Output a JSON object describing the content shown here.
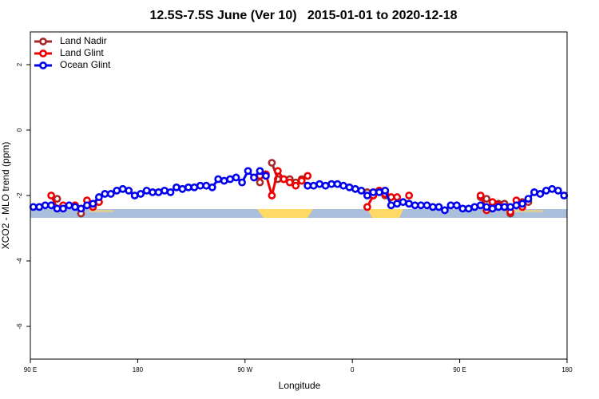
{
  "chart_data": {
    "type": "line",
    "title": "12.5S-7.5S June (Ver 10)   2015-01-01 to 2020-12-18",
    "x_label": "Longitude",
    "y_label": "XCO2 - MLO trend (ppm)",
    "xlim": [
      90,
      540
    ],
    "xticks": [
      {
        "value": 90,
        "label": "90 E"
      },
      180,
      {
        "value": 270,
        "label": "90 W"
      },
      {
        "value": 360,
        "label": "0"
      },
      {
        "value": 450,
        "label": "90 E"
      },
      {
        "value": 540,
        "label": "180"
      }
    ],
    "ylim": [
      -7,
      3
    ],
    "yticks": [
      2,
      0,
      -2,
      -4,
      -6
    ],
    "legend": "top-left",
    "x": [
      92.5,
      97.5,
      102.5,
      107.5,
      112.5,
      117.5,
      122.5,
      127.5,
      132.5,
      137.5,
      142.5,
      147.5,
      152.5,
      157.5,
      162.5,
      167.5,
      172.5,
      177.5,
      182.5,
      187.5,
      192.5,
      197.5,
      202.5,
      207.5,
      212.5,
      217.5,
      222.5,
      227.5,
      232.5,
      237.5,
      242.5,
      247.5,
      252.5,
      257.5,
      262.5,
      267.5,
      272.5,
      277.5,
      282.5,
      287.5,
      292.5,
      297.5,
      302.5,
      307.5,
      312.5,
      317.5,
      322.5,
      327.5,
      332.5,
      337.5,
      342.5,
      347.5,
      352.5,
      357.5,
      362.5,
      367.5,
      372.5,
      377.5,
      382.5,
      387.5,
      392.5,
      397.5,
      402.5,
      407.5,
      412.5,
      417.5,
      422.5,
      427.5,
      432.5,
      437.5,
      442.5,
      447.5,
      452.5,
      457.5,
      462.5,
      467.5,
      472.5,
      477.5,
      482.5,
      487.5,
      492.5,
      497.5,
      502.5,
      507.5,
      512.5,
      517.5,
      522.5,
      527.5,
      532.5,
      537.5
    ],
    "series": [
      {
        "name": "Land Nadir",
        "color": "#a52a2a",
        "values": [
          null,
          null,
          null,
          null,
          -2.1,
          null,
          null,
          null,
          -2.55,
          null,
          -2.3,
          -2.2,
          null,
          null,
          null,
          null,
          null,
          null,
          null,
          null,
          null,
          null,
          null,
          null,
          null,
          null,
          null,
          null,
          null,
          null,
          null,
          null,
          null,
          null,
          null,
          null,
          null,
          null,
          -1.6,
          null,
          -1.0,
          -1.5,
          -1.5,
          -1.5,
          -1.6,
          -1.5,
          -1.7,
          null,
          null,
          null,
          null,
          null,
          null,
          null,
          null,
          null,
          -1.9,
          -2.0,
          -1.85,
          -2.0,
          null,
          null,
          null,
          null,
          null,
          null,
          null,
          null,
          null,
          null,
          null,
          null,
          null,
          null,
          null,
          -2.05,
          -2.1,
          null,
          -2.25,
          -2.25,
          -2.55,
          null,
          -2.2,
          -2.2,
          null,
          null,
          null,
          null,
          null,
          null
        ]
      },
      {
        "name": "Land Glint",
        "color": "#ee0000",
        "values": [
          null,
          null,
          null,
          -2.0,
          -2.4,
          -2.3,
          null,
          -2.3,
          null,
          -2.15,
          -2.35,
          -2.2,
          null,
          null,
          null,
          null,
          null,
          null,
          null,
          null,
          null,
          null,
          null,
          null,
          null,
          null,
          null,
          null,
          null,
          null,
          null,
          null,
          null,
          null,
          null,
          null,
          null,
          null,
          -1.4,
          -1.35,
          -2.0,
          -1.25,
          -1.5,
          -1.6,
          -1.7,
          -1.55,
          -1.4,
          null,
          null,
          null,
          null,
          null,
          null,
          null,
          null,
          null,
          -2.35,
          -2.0,
          -1.85,
          -1.95,
          -2.05,
          -2.05,
          null,
          -2.0,
          null,
          null,
          null,
          null,
          null,
          null,
          null,
          null,
          null,
          null,
          null,
          -2.0,
          -2.45,
          -2.2,
          -2.3,
          -2.35,
          -2.5,
          -2.15,
          -2.35,
          null,
          null,
          null,
          null,
          null,
          null,
          null
        ]
      },
      {
        "name": "Ocean Glint",
        "color": "#0000ee",
        "values": [
          -2.35,
          -2.35,
          -2.3,
          -2.3,
          -2.4,
          -2.4,
          -2.3,
          -2.35,
          -2.4,
          -2.3,
          -2.25,
          -2.05,
          -1.95,
          -1.95,
          -1.85,
          -1.8,
          -1.85,
          -2.0,
          -1.95,
          -1.85,
          -1.9,
          -1.9,
          -1.85,
          -1.9,
          -1.75,
          -1.8,
          -1.75,
          -1.75,
          -1.7,
          -1.7,
          -1.75,
          -1.5,
          -1.55,
          -1.5,
          -1.45,
          -1.6,
          -1.25,
          -1.45,
          -1.25,
          -1.4,
          null,
          null,
          null,
          null,
          null,
          null,
          -1.7,
          -1.7,
          -1.65,
          -1.7,
          -1.65,
          -1.65,
          -1.7,
          -1.75,
          -1.8,
          -1.85,
          -2.0,
          -1.9,
          -1.9,
          -1.85,
          -2.3,
          -2.25,
          -2.2,
          -2.25,
          -2.3,
          -2.3,
          -2.3,
          -2.35,
          -2.35,
          -2.45,
          -2.3,
          -2.3,
          -2.4,
          -2.4,
          -2.35,
          -2.3,
          -2.35,
          -2.4,
          -2.35,
          -2.35,
          -2.35,
          -2.3,
          -2.25,
          -2.1,
          -1.9,
          -1.95,
          -1.85,
          -1.8,
          -1.85,
          -2.0
        ]
      }
    ]
  }
}
